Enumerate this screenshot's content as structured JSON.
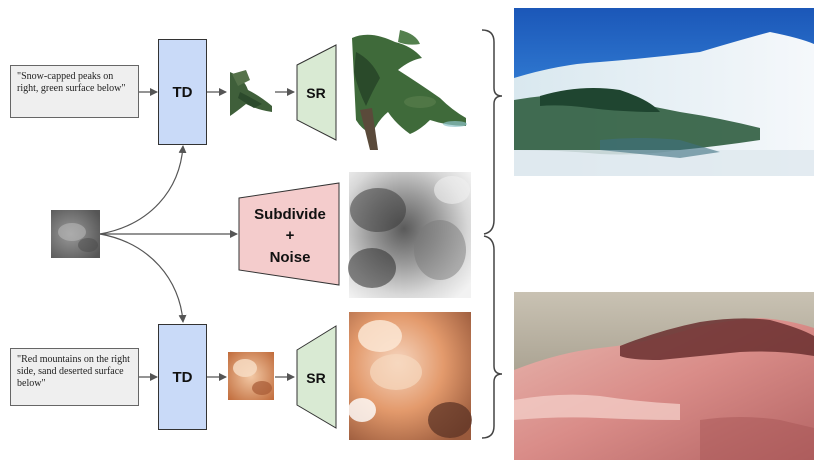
{
  "prompts": {
    "top": "\"Snow-capped peaks on right, green surface below\"",
    "bottom": "\"Red mountains on the right side, sand deserted surface below\""
  },
  "blocks": {
    "td_top": "TD",
    "td_bottom": "TD",
    "sr_top": "SR",
    "sr_bottom": "SR",
    "subdivide_line1": "Subdivide",
    "subdivide_line2": "+",
    "subdivide_line3": "Noise"
  },
  "colors": {
    "td_fill": "#c9daf8",
    "sr_fill": "#d9ead3",
    "subdivide_fill": "#f4cccc",
    "prompt_fill": "#efefef",
    "arrow": "#555555"
  },
  "icons": [
    "right-curly-brace-icon",
    "arrow-icon"
  ]
}
